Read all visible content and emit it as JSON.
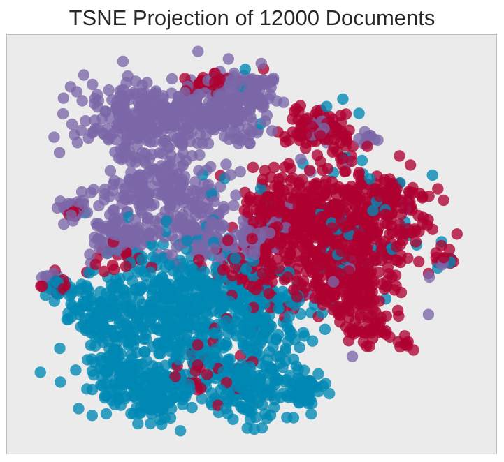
{
  "chart_data": {
    "type": "scatter",
    "title": "TSNE Projection of 12000 Documents",
    "xlabel": "",
    "ylabel": "",
    "grid": false,
    "legend": "none",
    "xlim": [
      -100,
      100
    ],
    "ylim": [
      -100,
      100
    ],
    "tick_labels": {
      "x": [],
      "y": []
    },
    "series": [
      {
        "color": "#ae0131",
        "clusters": [
          {
            "cx": 35,
            "cy": 12,
            "sx": 17,
            "sy": 16,
            "n": 520
          },
          {
            "cx": 10,
            "cy": 15,
            "sx": 7,
            "sy": 8,
            "n": 90
          },
          {
            "cx": 40,
            "cy": -20,
            "sx": 10,
            "sy": 9,
            "n": 150
          },
          {
            "cx": 62,
            "cy": 20,
            "sx": 9,
            "sy": 7,
            "n": 80
          },
          {
            "cx": 28,
            "cy": 60,
            "sx": 8,
            "sy": 5,
            "n": 70
          },
          {
            "cx": 50,
            "cy": -40,
            "sx": 6,
            "sy": 5,
            "n": 40
          },
          {
            "cx": -15,
            "cy": 82,
            "sx": 8,
            "sy": 3,
            "n": 35
          },
          {
            "cx": 84,
            "cy": -8,
            "sx": 2,
            "sy": 2,
            "n": 10
          },
          {
            "cx": 68,
            "cy": -48,
            "sx": 2,
            "sy": 2,
            "n": 8
          },
          {
            "cx": -85,
            "cy": -19,
            "sx": 3,
            "sy": 3,
            "n": 14
          },
          {
            "cx": -78,
            "cy": 19,
            "sx": 2,
            "sy": 2,
            "n": 8
          },
          {
            "cx": -58,
            "cy": -6,
            "sx": 6,
            "sy": 4,
            "n": 18
          },
          {
            "cx": -18,
            "cy": -60,
            "sx": 10,
            "sy": 8,
            "n": 30
          },
          {
            "cx": 0,
            "cy": -15,
            "sx": 10,
            "sy": 8,
            "n": 70
          }
        ]
      },
      {
        "color": "#0088b3",
        "clusters": [
          {
            "cx": -30,
            "cy": -32,
            "sx": 21,
            "sy": 17,
            "n": 560
          },
          {
            "cx": -45,
            "cy": -72,
            "sx": 12,
            "sy": 8,
            "n": 170
          },
          {
            "cx": -3,
            "cy": -72,
            "sx": 10,
            "sy": 8,
            "n": 150
          },
          {
            "cx": 23,
            "cy": -72,
            "sx": 5,
            "sy": 5,
            "n": 55
          },
          {
            "cx": -66,
            "cy": -35,
            "sx": 7,
            "sy": 8,
            "n": 80
          },
          {
            "cx": -58,
            "cy": -60,
            "sx": 5,
            "sy": 5,
            "n": 40
          },
          {
            "cx": -83,
            "cy": -21,
            "sx": 3,
            "sy": 3,
            "n": 16
          },
          {
            "cx": 5,
            "cy": -40,
            "sx": 10,
            "sy": 10,
            "n": 80
          },
          {
            "cx": 38,
            "cy": 0,
            "sx": 22,
            "sy": 22,
            "n": 55
          },
          {
            "cx": 0,
            "cy": 25,
            "sx": 30,
            "sy": 30,
            "n": 25
          },
          {
            "cx": 84,
            "cy": -8,
            "sx": 2,
            "sy": 2,
            "n": 4
          }
        ]
      },
      {
        "color": "#7b67a8",
        "clusters": [
          {
            "cx": -42,
            "cy": 63,
            "sx": 16,
            "sy": 10,
            "n": 330
          },
          {
            "cx": -10,
            "cy": 70,
            "sx": 9,
            "sy": 10,
            "n": 140
          },
          {
            "cx": -40,
            "cy": 25,
            "sx": 14,
            "sy": 10,
            "n": 200
          },
          {
            "cx": -20,
            "cy": 5,
            "sx": 8,
            "sy": 6,
            "n": 95
          },
          {
            "cx": -60,
            "cy": 5,
            "sx": 6,
            "sy": 5,
            "n": 70
          },
          {
            "cx": 0,
            "cy": 80,
            "sx": 5,
            "sy": 4,
            "n": 50
          },
          {
            "cx": 3,
            "cy": 5,
            "sx": 6,
            "sy": 5,
            "n": 35
          },
          {
            "cx": -78,
            "cy": 19,
            "sx": 3,
            "sy": 3,
            "n": 25
          },
          {
            "cx": -89,
            "cy": -16,
            "sx": 2,
            "sy": 2,
            "n": 6
          },
          {
            "cx": 30,
            "cy": 58,
            "sx": 3,
            "sy": 3,
            "n": 10
          },
          {
            "cx": 50,
            "cy": 56,
            "sx": 3,
            "sy": 3,
            "n": 10
          },
          {
            "cx": 84,
            "cy": -8,
            "sx": 1.5,
            "sy": 1.5,
            "n": 3
          },
          {
            "cx": 35,
            "cy": 0,
            "sx": 22,
            "sy": 22,
            "n": 30
          }
        ]
      }
    ]
  }
}
